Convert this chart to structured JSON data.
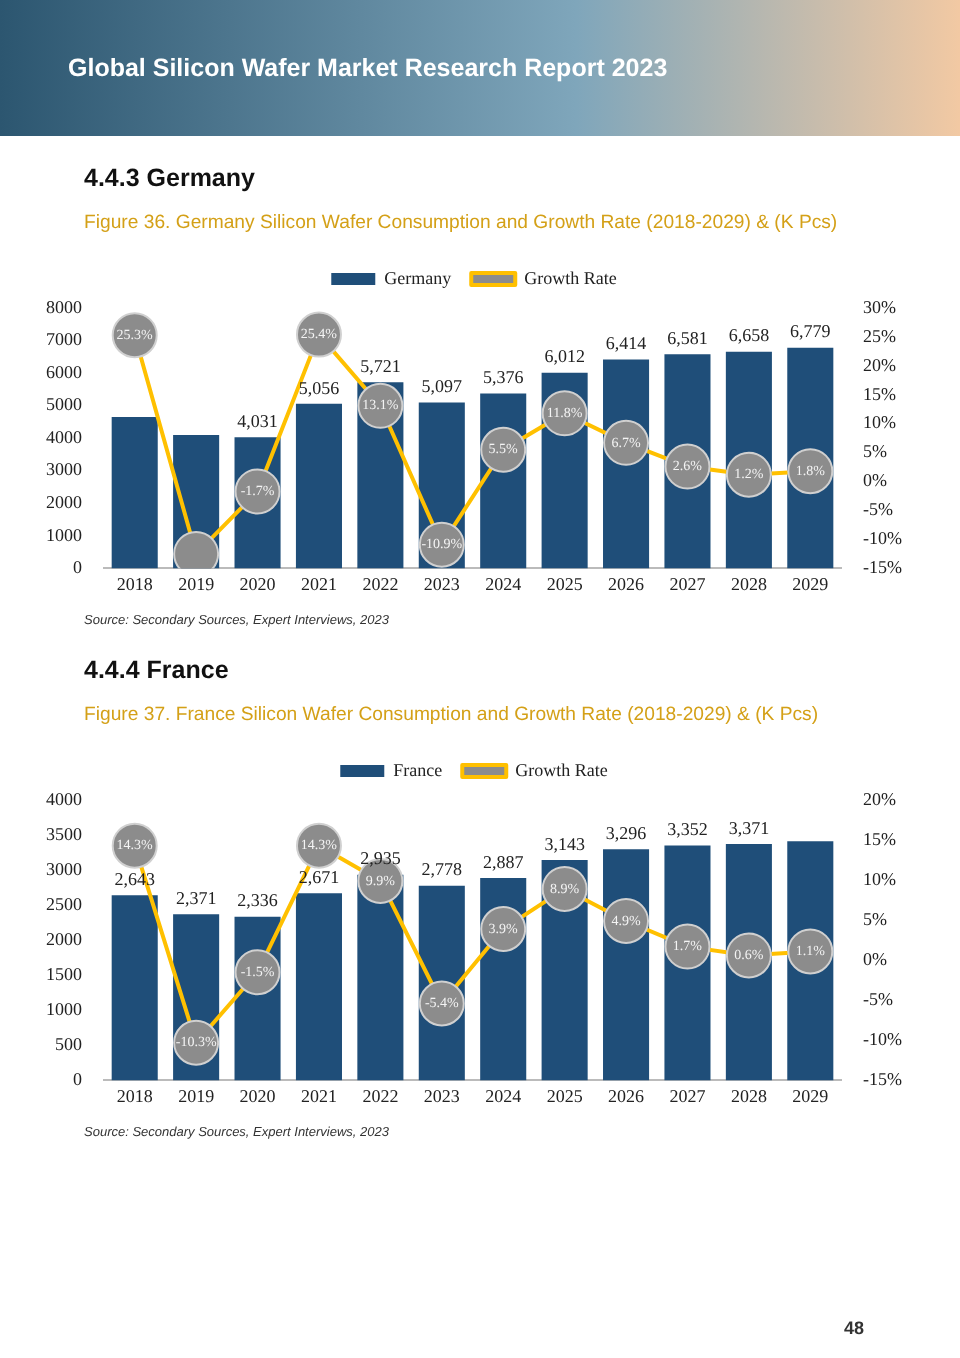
{
  "chart_data": [
    {
      "type": "bar",
      "title": "Figure 36.   Germany Silicon Wafer Consumption and Growth Rate (2018-2029) & (K Pcs)",
      "annotations": [
        "Global Silicon Wafer Market Research Report 2023",
        "4.4.3  Germany",
        "Source: Secondary Sources, Expert Interviews, 2023"
      ],
      "categories": [
        "2018",
        "2019",
        "2020",
        "2021",
        "2022",
        "2023",
        "2024",
        "2025",
        "2026",
        "2027",
        "2028",
        "2029"
      ],
      "series": [
        {
          "name": "Germany",
          "color": "#1f4e79",
          "values": [
            4650,
            4100,
            4031,
            5056,
            5721,
            5097,
            5376,
            6012,
            6414,
            6581,
            6658,
            6779
          ],
          "value_labels": [
            null,
            null,
            "4,031",
            "5,056",
            "5,721",
            "5,097",
            "5,376",
            "6,012",
            "6,414",
            "6,581",
            "6,658",
            "6,779"
          ]
        },
        {
          "name": "Growth Rate",
          "type": "line",
          "axis": "y2",
          "color": "#ffc000",
          "values": [
            25.3,
            -12.5,
            -1.7,
            25.4,
            13.1,
            -10.9,
            5.5,
            11.8,
            6.7,
            2.6,
            1.2,
            1.8
          ],
          "value_labels": [
            "25.3%",
            null,
            "-1.7%",
            "25.4%",
            "13.1%",
            "-10.9%",
            "5.5%",
            "11.8%",
            "6.7%",
            "2.6%",
            "1.2%",
            "1.8%"
          ]
        }
      ],
      "ylim": [
        0,
        8000
      ],
      "yticks": [
        0,
        1000,
        2000,
        3000,
        4000,
        5000,
        6000,
        7000,
        8000
      ],
      "y2lim": [
        -15,
        30
      ],
      "y2ticks": [
        {
          "value": -15,
          "label": "-15%"
        },
        {
          "value": -10,
          "label": "-10%"
        },
        {
          "value": -5,
          "label": "-5%"
        },
        {
          "value": 0,
          "label": "0%"
        },
        {
          "value": 5,
          "label": "5%"
        },
        {
          "value": 10,
          "label": "10%"
        },
        {
          "value": 15,
          "label": "15%"
        },
        {
          "value": 20,
          "label": "20%"
        },
        {
          "value": 25,
          "label": "25%"
        },
        {
          "value": 30,
          "label": "30%"
        }
      ],
      "legend": "top",
      "marker": "circle",
      "grid": false
    },
    {
      "type": "bar",
      "title": "Figure 37.   France Silicon Wafer Consumption and Growth Rate (2018-2029) & (K Pcs)",
      "annotations": [
        "4.4.4  France",
        "Source: Secondary Sources, Expert Interviews, 2023",
        "48"
      ],
      "categories": [
        "2018",
        "2019",
        "2020",
        "2021",
        "2022",
        "2023",
        "2024",
        "2025",
        "2026",
        "2027",
        "2028",
        "2029"
      ],
      "series": [
        {
          "name": "France",
          "color": "#1f4e79",
          "values": [
            2643,
            2371,
            2336,
            2671,
            2935,
            2778,
            2887,
            3143,
            3296,
            3352,
            3371,
            3410
          ],
          "value_labels": [
            "2,643",
            "2,371",
            "2,336",
            "2,671",
            "2,935",
            "2,778",
            "2,887",
            "3,143",
            "3,296",
            "3,352",
            "3,371",
            null
          ]
        },
        {
          "name": "Growth Rate",
          "type": "line",
          "axis": "y2",
          "color": "#ffc000",
          "values": [
            14.3,
            -10.3,
            -1.5,
            14.3,
            9.9,
            -5.4,
            3.9,
            8.9,
            4.9,
            1.7,
            0.6,
            1.1
          ],
          "value_labels": [
            "14.3%",
            "-10.3%",
            "-1.5%",
            "14.3%",
            "9.9%",
            "-5.4%",
            "3.9%",
            "8.9%",
            "4.9%",
            "1.7%",
            "0.6%",
            "1.1%"
          ]
        }
      ],
      "ylim": [
        0,
        4000
      ],
      "yticks": [
        0,
        500,
        1000,
        1500,
        2000,
        2500,
        3000,
        3500,
        4000
      ],
      "y2lim": [
        -15,
        20
      ],
      "y2ticks": [
        {
          "value": -15,
          "label": "-15%"
        },
        {
          "value": -10,
          "label": "-10%"
        },
        {
          "value": -5,
          "label": "-5%"
        },
        {
          "value": 0,
          "label": "0%"
        },
        {
          "value": 5,
          "label": "5%"
        },
        {
          "value": 10,
          "label": "10%"
        },
        {
          "value": 15,
          "label": "15%"
        },
        {
          "value": 20,
          "label": "20%"
        }
      ],
      "legend": "top",
      "marker": "circle",
      "grid": false
    }
  ]
}
